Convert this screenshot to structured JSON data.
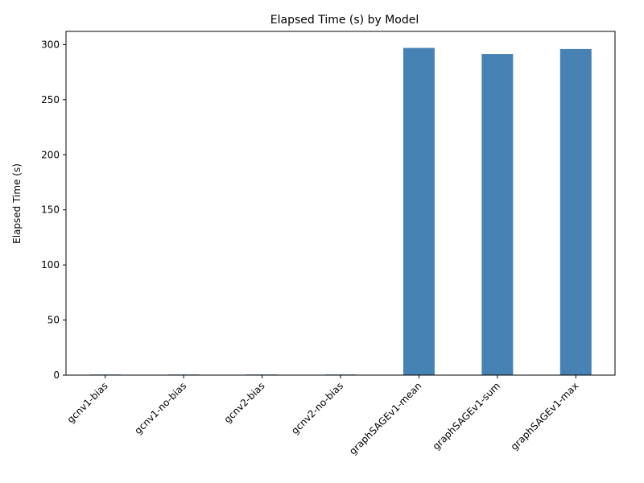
{
  "chart_data": {
    "type": "bar",
    "title": "Elapsed Time (s) by Model",
    "xlabel": "",
    "ylabel": "Elapsed Time (s)",
    "categories": [
      "gcnv1-bias",
      "gcnv1-no-bias",
      "gcnv2-bias",
      "gcnv2-no-bias",
      "graphSAGEv1-mean",
      "graphSAGEv1-sum",
      "graphSAGEv1-max"
    ],
    "values": [
      0.6,
      0.6,
      0.6,
      0.6,
      297,
      291.5,
      296
    ],
    "ylim": [
      0,
      312
    ],
    "yticks": [
      0,
      50,
      100,
      150,
      200,
      250,
      300
    ],
    "grid": false,
    "legend": "none",
    "colors": {
      "bar": "#4682b4",
      "axis": "#000000",
      "background": "#ffffff"
    }
  }
}
